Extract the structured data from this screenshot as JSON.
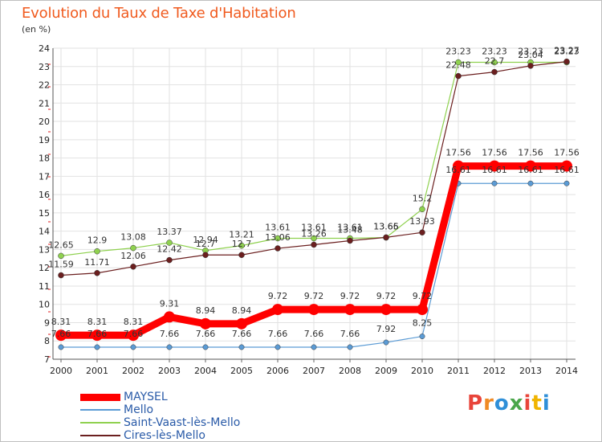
{
  "title": "Evolution du Taux de Taxe d'Habitation",
  "unit_label": "(en %)",
  "logo_text": "Proxiti",
  "chart_data": {
    "type": "line",
    "title": "Evolution du Taux de Taxe d'Habitation",
    "ylabel": "(en %)",
    "xlabel": "",
    "categories": [
      "2000",
      "2001",
      "2002",
      "2003",
      "2004",
      "2005",
      "2006",
      "2007",
      "2008",
      "2009",
      "2010",
      "2011",
      "2012",
      "2013",
      "2014"
    ],
    "ylim": [
      7,
      24
    ],
    "yticks": [
      7,
      8,
      9,
      10,
      11,
      12,
      13,
      14,
      15,
      16,
      17,
      18,
      19,
      20,
      21,
      22,
      23,
      24
    ],
    "grid": true,
    "legend_position": "bottom-left",
    "series": [
      {
        "name": "MAYSEL",
        "color": "#ff0000",
        "values": [
          8.31,
          8.31,
          8.31,
          9.31,
          8.94,
          8.94,
          9.72,
          9.72,
          9.72,
          9.72,
          9.72,
          17.56,
          17.56,
          17.56,
          17.56
        ],
        "labels": [
          "8.31",
          "8.31",
          "8.31",
          "9.31",
          "8.94",
          "8.94",
          "9.72",
          "9.72",
          "9.72",
          "9.72",
          "9.72",
          "17.56",
          "17.56",
          "17.56",
          "17.56"
        ]
      },
      {
        "name": "Mello",
        "color": "#5b9bd5",
        "values": [
          7.66,
          7.66,
          7.66,
          7.66,
          7.66,
          7.66,
          7.66,
          7.66,
          7.66,
          7.92,
          8.25,
          16.61,
          16.61,
          16.61,
          16.61
        ],
        "labels": [
          "7.66",
          "7.66",
          "7.66",
          "7.66",
          "7.66",
          "7.66",
          "7.66",
          "7.66",
          "7.66",
          "7.92",
          "8.25",
          "16.61",
          "16.61",
          "16.61",
          "16.61"
        ]
      },
      {
        "name": "Saint-Vaast-lès-Mello",
        "color": "#8fd14f",
        "values": [
          12.65,
          12.9,
          13.08,
          13.37,
          12.94,
          13.21,
          13.61,
          13.61,
          13.61,
          13.65,
          15.2,
          23.23,
          23.23,
          23.23,
          23.23
        ],
        "labels": [
          "12.65",
          "12.9",
          "13.08",
          "13.37",
          "12.94",
          "13.21",
          "13.61",
          "13.61",
          "13.61",
          "13.65",
          "15.2",
          "23.23",
          "23.23",
          "23.23",
          "23.23"
        ]
      },
      {
        "name": "Cires-lès-Mello",
        "color": "#6b1f1f",
        "values": [
          11.59,
          11.71,
          12.06,
          12.42,
          12.7,
          12.7,
          13.06,
          13.26,
          13.48,
          13.66,
          13.93,
          22.48,
          22.7,
          23.04,
          23.27
        ],
        "labels": [
          "11.59",
          "11.71",
          "12.06",
          "12.42",
          "12.7",
          "12.7",
          "13.06",
          "13.26",
          "13.48",
          "13.66",
          "13.93",
          "22.48",
          "22.7",
          "23.04",
          "23.27"
        ]
      }
    ]
  }
}
